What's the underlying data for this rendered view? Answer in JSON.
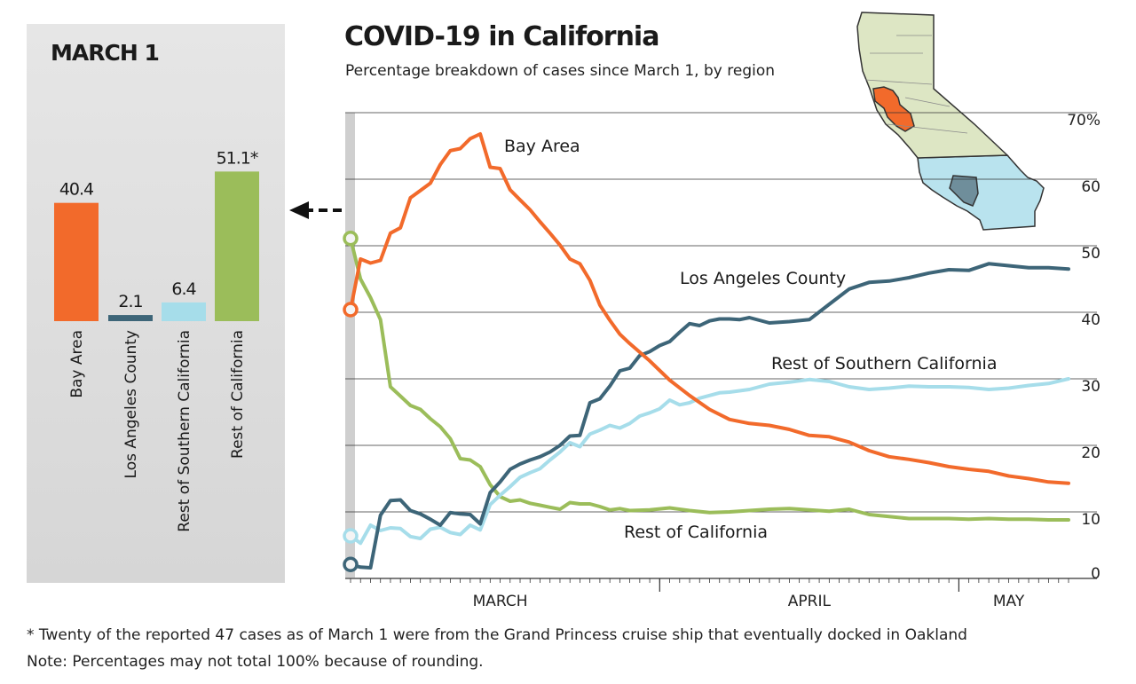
{
  "colors": {
    "bay_area": "#f26a2b",
    "los_angeles": "#3d6578",
    "rest_southern": "#a6ddea",
    "rest_california": "#9bbd5a",
    "map_north": "#dde6c4",
    "map_south": "#b9e3ee",
    "map_la": "#6f8e9b"
  },
  "header": {
    "title": "COVID-19 in California",
    "subtitle": "Percentage breakdown of cases since March 1, by region"
  },
  "footer": {
    "footnote": "* Twenty of the reported 47 cases as of March 1 were from the Grand Princess cruise ship that eventually docked in Oakland",
    "note": "Note: Percentages may not total 100% because of rounding."
  },
  "chart_data": [
    {
      "type": "bar",
      "title": "MARCH 1",
      "categories": [
        "Bay Area",
        "Los Angeles County",
        "Rest of Southern California",
        "Rest of California"
      ],
      "values": [
        40.4,
        2.1,
        6.4,
        51.1
      ],
      "value_labels": [
        "40.4",
        "2.1",
        "6.4",
        "51.1*"
      ],
      "ylim": [
        0,
        60
      ]
    },
    {
      "type": "line",
      "title": "COVID-19 in California",
      "xlabel": "",
      "ylabel": "",
      "ylim": [
        0,
        70
      ],
      "y_ticks": [
        0,
        10,
        20,
        30,
        40,
        50,
        60,
        70
      ],
      "y_tick_labels": [
        "0",
        "10",
        "20",
        "30",
        "40",
        "50",
        "60",
        "70%"
      ],
      "x_range": [
        0,
        72
      ],
      "x_month_labels": [
        {
          "label": "MARCH",
          "x": 15
        },
        {
          "label": "APRIL",
          "x": 46
        },
        {
          "label": "MAY",
          "x": 66
        }
      ],
      "x_month_dividers": [
        31,
        61
      ],
      "series": [
        {
          "name": "Bay Area",
          "label": "Bay Area",
          "x": [
            0,
            1,
            2,
            3,
            4,
            5,
            6,
            7,
            8,
            9,
            10,
            11,
            12,
            13,
            14,
            15,
            16,
            17,
            18,
            19,
            20,
            21,
            22,
            23,
            24,
            25,
            26,
            27,
            28,
            30,
            32,
            34,
            36,
            38,
            40,
            42,
            44,
            46,
            48,
            50,
            52,
            54,
            56,
            58,
            60,
            62,
            64,
            66,
            68,
            70,
            72
          ],
          "values": [
            40.4,
            48.0,
            47.4,
            47.8,
            51.9,
            52.7,
            57.2,
            58.3,
            59.4,
            62.2,
            64.3,
            64.6,
            66.1,
            66.8,
            61.8,
            61.6,
            58.4,
            56.9,
            55.4,
            53.6,
            51.9,
            50.1,
            48.0,
            47.3,
            44.8,
            41.1,
            38.8,
            36.7,
            35.3,
            32.7,
            29.8,
            27.5,
            25.4,
            23.9,
            23.3,
            23.0,
            22.4,
            21.5,
            21.3,
            20.5,
            19.2,
            18.3,
            17.9,
            17.4,
            16.8,
            16.4,
            16.1,
            15.4,
            15.0,
            14.5,
            14.3
          ]
        },
        {
          "name": "Los Angeles County",
          "label": "Los Angeles County",
          "x": [
            0,
            1,
            2,
            3,
            4,
            5,
            6,
            7,
            8,
            9,
            10,
            11,
            12,
            13,
            14,
            15,
            16,
            17,
            18,
            19,
            20,
            21,
            22,
            23,
            24,
            25,
            26,
            27,
            28,
            29,
            30,
            31,
            32,
            33,
            34,
            35,
            36,
            37,
            38,
            39,
            40,
            42,
            44,
            46,
            48,
            50,
            52,
            54,
            56,
            58,
            60,
            62,
            64,
            66,
            68,
            70,
            72
          ],
          "values": [
            2.1,
            1.7,
            1.6,
            9.5,
            11.7,
            11.8,
            10.2,
            9.7,
            8.9,
            8.0,
            9.9,
            9.7,
            9.6,
            8.2,
            12.9,
            14.5,
            16.4,
            17.2,
            17.8,
            18.3,
            19.0,
            20.0,
            21.4,
            21.5,
            26.4,
            27.0,
            28.9,
            31.2,
            31.6,
            33.5,
            34.1,
            35.0,
            35.6,
            37.0,
            38.3,
            38.0,
            38.7,
            39.0,
            39.0,
            38.9,
            39.2,
            38.4,
            38.6,
            38.9,
            41.2,
            43.5,
            44.5,
            44.7,
            45.2,
            45.9,
            46.4,
            46.3,
            47.3,
            47.0,
            46.7,
            46.7,
            46.5
          ]
        },
        {
          "name": "Rest of Southern California",
          "label": "Rest of Southern California",
          "x": [
            0,
            1,
            2,
            3,
            4,
            5,
            6,
            7,
            8,
            9,
            10,
            11,
            12,
            13,
            14,
            15,
            16,
            17,
            18,
            19,
            20,
            21,
            22,
            23,
            24,
            25,
            26,
            27,
            28,
            29,
            30,
            31,
            32,
            33,
            34,
            35,
            36,
            37,
            38,
            39,
            40,
            42,
            44,
            46,
            48,
            50,
            52,
            54,
            56,
            58,
            60,
            62,
            64,
            66,
            68,
            70,
            72
          ],
          "values": [
            6.4,
            5.3,
            8.0,
            7.2,
            7.6,
            7.5,
            6.3,
            6.0,
            7.4,
            7.7,
            6.9,
            6.6,
            8.0,
            7.3,
            11.1,
            12.5,
            13.8,
            15.2,
            15.9,
            16.5,
            17.8,
            19.0,
            20.4,
            19.8,
            21.7,
            22.3,
            23.0,
            22.6,
            23.3,
            24.4,
            24.9,
            25.5,
            26.8,
            26.1,
            26.4,
            27.1,
            27.5,
            27.9,
            28.0,
            28.2,
            28.4,
            29.2,
            29.5,
            29.9,
            29.6,
            28.8,
            28.4,
            28.6,
            28.9,
            28.8,
            28.8,
            28.7,
            28.4,
            28.6,
            29.0,
            29.3,
            30.0
          ]
        },
        {
          "name": "Rest of California",
          "label": "Rest of California",
          "x": [
            0,
            1,
            2,
            3,
            4,
            5,
            6,
            7,
            8,
            9,
            10,
            11,
            12,
            13,
            14,
            15,
            16,
            17,
            18,
            19,
            20,
            21,
            22,
            23,
            24,
            25,
            26,
            27,
            28,
            30,
            32,
            34,
            36,
            38,
            40,
            42,
            44,
            46,
            48,
            50,
            52,
            54,
            56,
            58,
            60,
            62,
            64,
            66,
            68,
            70,
            72
          ],
          "values": [
            51.1,
            45.0,
            42.2,
            38.9,
            28.8,
            27.4,
            26.0,
            25.4,
            24.0,
            22.8,
            21.0,
            18.0,
            17.8,
            16.8,
            14.1,
            12.3,
            11.6,
            11.8,
            11.3,
            11.0,
            10.7,
            10.4,
            11.4,
            11.2,
            11.2,
            10.8,
            10.3,
            10.5,
            10.2,
            10.3,
            10.6,
            10.2,
            9.9,
            10.0,
            10.2,
            10.4,
            10.5,
            10.3,
            10.1,
            10.4,
            9.6,
            9.3,
            9.0,
            9.0,
            9.0,
            8.9,
            9.0,
            8.9,
            8.9,
            8.8,
            8.8
          ]
        }
      ]
    }
  ]
}
